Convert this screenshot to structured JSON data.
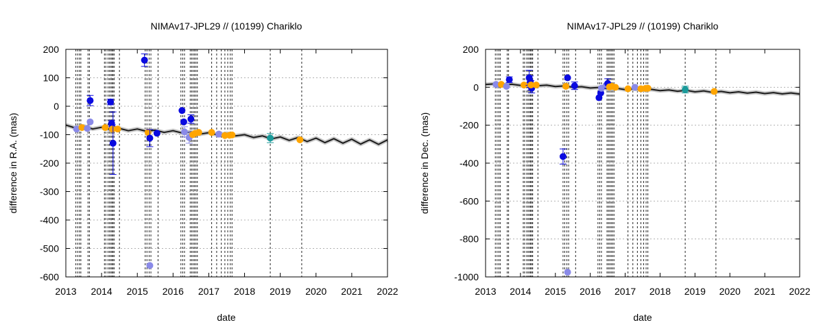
{
  "chart_data": [
    {
      "type": "scatter",
      "title": "NIMAv17-JPL29 // (10199) Chariklo",
      "xlabel": "date",
      "ylabel": "difference in R.A. (mas)",
      "xlim": [
        2013,
        2022
      ],
      "ylim": [
        -600,
        200
      ],
      "xticks": [
        2013,
        2014,
        2015,
        2016,
        2017,
        2018,
        2019,
        2020,
        2021,
        2022
      ],
      "yticks": [
        -600,
        -500,
        -400,
        -300,
        -200,
        -100,
        0,
        100,
        200
      ],
      "grid": "dotted horizontal",
      "model_curve": {
        "color": "#1a1a1a",
        "x": [
          2013.0,
          2013.25,
          2013.5,
          2013.75,
          2014.0,
          2014.25,
          2014.5,
          2014.75,
          2015.0,
          2015.25,
          2015.5,
          2015.75,
          2016.0,
          2016.25,
          2016.5,
          2016.75,
          2017.0,
          2017.25,
          2017.5,
          2017.75,
          2018.0,
          2018.25,
          2018.5,
          2018.75,
          2019.0,
          2019.25,
          2019.5,
          2019.75,
          2020.0,
          2020.25,
          2020.5,
          2020.75,
          2021.0,
          2021.25,
          2021.5,
          2021.75,
          2022.0
        ],
        "y": [
          -66,
          -76,
          -70,
          -80,
          -74,
          -82,
          -78,
          -86,
          -80,
          -88,
          -84,
          -92,
          -86,
          -94,
          -90,
          -98,
          -93,
          -101,
          -96,
          -104,
          -100,
          -110,
          -104,
          -115,
          -108,
          -120,
          -110,
          -124,
          -112,
          -128,
          -114,
          -130,
          -116,
          -133,
          -118,
          -134,
          -118
        ]
      },
      "observations": [
        {
          "x": 2013.3,
          "y": -80,
          "color": "#8a8ae8"
        },
        {
          "x": 2013.45,
          "y": -75,
          "color": "#ffa500"
        },
        {
          "x": 2013.6,
          "y": -78,
          "color": "#8a8ae8"
        },
        {
          "x": 2013.68,
          "y": -55,
          "color": "#8a8ae8"
        },
        {
          "x": 2013.68,
          "y": 20,
          "color": "#0a0ae0",
          "err": 18
        },
        {
          "x": 2014.1,
          "y": -75,
          "color": "#ffa500"
        },
        {
          "x": 2014.25,
          "y": 15,
          "color": "#0a0ae0",
          "err": 10
        },
        {
          "x": 2014.28,
          "y": -60,
          "color": "#0a0ae0",
          "err": 10
        },
        {
          "x": 2014.3,
          "y": -75,
          "color": "#0a0ae0",
          "err": 10
        },
        {
          "x": 2014.3,
          "y": -80,
          "color": "#ffa500"
        },
        {
          "x": 2014.32,
          "y": -130,
          "color": "#0a0ae0",
          "err": 110
        },
        {
          "x": 2014.45,
          "y": -80,
          "color": "#ffa500"
        },
        {
          "x": 2015.2,
          "y": 162,
          "color": "#0a0ae0",
          "err": 22
        },
        {
          "x": 2015.3,
          "y": -92,
          "color": "#ffa500"
        },
        {
          "x": 2015.35,
          "y": -112,
          "color": "#0a0ae0",
          "err": 30
        },
        {
          "x": 2015.35,
          "y": -560,
          "color": "#8a8ae8"
        },
        {
          "x": 2015.55,
          "y": -95,
          "color": "#0a0ae0"
        },
        {
          "x": 2016.25,
          "y": -15,
          "color": "#0a0ae0"
        },
        {
          "x": 2016.3,
          "y": -55,
          "color": "#0a0ae0"
        },
        {
          "x": 2016.32,
          "y": -90,
          "color": "#8a8ae8",
          "err": 18
        },
        {
          "x": 2016.45,
          "y": -110,
          "color": "#8a8ae8",
          "err": 20
        },
        {
          "x": 2016.5,
          "y": -45,
          "color": "#0a0ae0",
          "err": 15
        },
        {
          "x": 2016.55,
          "y": -100,
          "color": "#ffa500"
        },
        {
          "x": 2016.62,
          "y": -95,
          "color": "#ffa500"
        },
        {
          "x": 2016.72,
          "y": -92,
          "color": "#ffa500"
        },
        {
          "x": 2017.08,
          "y": -92,
          "color": "#ffa500"
        },
        {
          "x": 2017.28,
          "y": -98,
          "color": "#8a8ae8"
        },
        {
          "x": 2017.45,
          "y": -103,
          "color": "#ffa500"
        },
        {
          "x": 2017.58,
          "y": -102,
          "color": "#ffa500"
        },
        {
          "x": 2017.65,
          "y": -101,
          "color": "#ffa500"
        },
        {
          "x": 2018.72,
          "y": -112,
          "color": "#1a9a9a",
          "err": 16
        },
        {
          "x": 2019.55,
          "y": -118,
          "color": "#ffa500"
        }
      ],
      "vlines": [
        2013.28,
        2013.33,
        2013.38,
        2013.42,
        2013.62,
        2013.66,
        2014.08,
        2014.12,
        2014.18,
        2014.22,
        2014.26,
        2014.29,
        2014.32,
        2014.35,
        2014.5,
        2015.22,
        2015.27,
        2015.33,
        2015.38,
        2015.58,
        2016.22,
        2016.27,
        2016.32,
        2016.48,
        2016.52,
        2016.56,
        2016.6,
        2016.64,
        2016.68,
        2017.08,
        2017.22,
        2017.35,
        2017.45,
        2017.53,
        2017.6,
        2017.65,
        2018.72,
        2019.6
      ]
    },
    {
      "type": "scatter",
      "title": "NIMAv17-JPL29 // (10199) Chariklo",
      "xlabel": "date",
      "ylabel": "difference in Dec. (mas)",
      "xlim": [
        2013,
        2022
      ],
      "ylim": [
        -1000,
        200
      ],
      "xticks": [
        2013,
        2014,
        2015,
        2016,
        2017,
        2018,
        2019,
        2020,
        2021,
        2022
      ],
      "yticks": [
        -1000,
        -800,
        -600,
        -400,
        -200,
        0,
        200
      ],
      "grid": "dotted horizontal",
      "model_curve": {
        "color": "#1a1a1a",
        "x": [
          2013.0,
          2013.25,
          2013.5,
          2013.75,
          2014.0,
          2014.25,
          2014.5,
          2014.75,
          2015.0,
          2015.25,
          2015.5,
          2015.75,
          2016.0,
          2016.25,
          2016.5,
          2016.75,
          2017.0,
          2017.25,
          2017.5,
          2017.75,
          2018.0,
          2018.25,
          2018.5,
          2018.75,
          2019.0,
          2019.25,
          2019.5,
          2019.75,
          2020.0,
          2020.25,
          2020.5,
          2020.75,
          2021.0,
          2021.25,
          2021.5,
          2021.75,
          2022.0
        ],
        "y": [
          15,
          18,
          12,
          16,
          10,
          14,
          8,
          11,
          4,
          7,
          0,
          3,
          -4,
          -1,
          -8,
          -5,
          -12,
          -8,
          -15,
          -11,
          -18,
          -14,
          -21,
          -16,
          -24,
          -19,
          -27,
          -22,
          -29,
          -24,
          -31,
          -26,
          -33,
          -28,
          -35,
          -30,
          -36
        ]
      },
      "observations": [
        {
          "x": 2013.3,
          "y": 15,
          "color": "#8a8ae8"
        },
        {
          "x": 2013.45,
          "y": 15,
          "color": "#ffa500"
        },
        {
          "x": 2013.6,
          "y": 5,
          "color": "#8a8ae8"
        },
        {
          "x": 2013.68,
          "y": 40,
          "color": "#0a0ae0",
          "err": 15
        },
        {
          "x": 2014.1,
          "y": 12,
          "color": "#ffa500"
        },
        {
          "x": 2014.25,
          "y": 50,
          "color": "#0a0ae0",
          "err": 40
        },
        {
          "x": 2014.28,
          "y": 30,
          "color": "#0a0ae0",
          "err": 30
        },
        {
          "x": 2014.3,
          "y": 10,
          "color": "#0a0ae0",
          "err": 25
        },
        {
          "x": 2014.32,
          "y": -5,
          "color": "#0a0ae0",
          "err": 25
        },
        {
          "x": 2014.3,
          "y": 12,
          "color": "#ffa500"
        },
        {
          "x": 2014.45,
          "y": 12,
          "color": "#ffa500"
        },
        {
          "x": 2015.22,
          "y": -365,
          "color": "#0a0ae0",
          "err": 40
        },
        {
          "x": 2015.3,
          "y": 5,
          "color": "#ffa500"
        },
        {
          "x": 2015.35,
          "y": 50,
          "color": "#0a0ae0"
        },
        {
          "x": 2015.35,
          "y": -975,
          "color": "#8a8ae8"
        },
        {
          "x": 2015.55,
          "y": 8,
          "color": "#0a0ae0",
          "err": 20
        },
        {
          "x": 2016.25,
          "y": -55,
          "color": "#0a0ae0"
        },
        {
          "x": 2016.3,
          "y": -30,
          "color": "#0a0ae0"
        },
        {
          "x": 2016.32,
          "y": -5,
          "color": "#8a8ae8"
        },
        {
          "x": 2016.45,
          "y": 10,
          "color": "#8a8ae8"
        },
        {
          "x": 2016.5,
          "y": 20,
          "color": "#0a0ae0",
          "err": 25
        },
        {
          "x": 2016.55,
          "y": 2,
          "color": "#ffa500"
        },
        {
          "x": 2016.62,
          "y": 5,
          "color": "#ffa500"
        },
        {
          "x": 2016.72,
          "y": 0,
          "color": "#ffa500"
        },
        {
          "x": 2017.08,
          "y": -8,
          "color": "#ffa500"
        },
        {
          "x": 2017.28,
          "y": 0,
          "color": "#8a8ae8"
        },
        {
          "x": 2017.45,
          "y": -8,
          "color": "#ffa500"
        },
        {
          "x": 2017.58,
          "y": -6,
          "color": "#ffa500"
        },
        {
          "x": 2017.65,
          "y": -5,
          "color": "#ffa500"
        },
        {
          "x": 2018.72,
          "y": -12,
          "color": "#1a9a9a",
          "err": 18
        },
        {
          "x": 2019.55,
          "y": -22,
          "color": "#ffa500"
        }
      ],
      "vlines": [
        2013.28,
        2013.33,
        2013.38,
        2013.42,
        2013.62,
        2013.66,
        2014.08,
        2014.12,
        2014.18,
        2014.22,
        2014.26,
        2014.29,
        2014.32,
        2014.35,
        2014.5,
        2015.22,
        2015.27,
        2015.33,
        2015.38,
        2015.58,
        2016.22,
        2016.27,
        2016.32,
        2016.48,
        2016.52,
        2016.56,
        2016.6,
        2016.64,
        2016.68,
        2017.08,
        2017.22,
        2017.35,
        2017.45,
        2017.53,
        2017.6,
        2017.65,
        2018.72,
        2019.6
      ]
    }
  ]
}
